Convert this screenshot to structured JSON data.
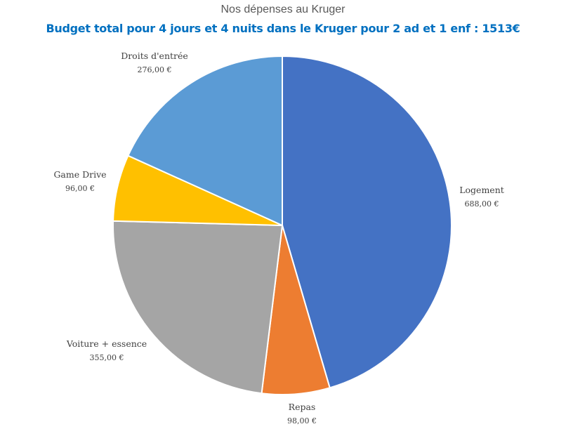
{
  "chart_data": {
    "type": "pie",
    "title": "Nos dépenses au Kruger",
    "subtitle": "Budget total pour 4 jours et 4 nuits dans le Kruger pour 2 ad et 1 enf : 1513€",
    "categories": [
      "Logement",
      "Repas",
      "Voiture + essence",
      "Game Drive",
      "Droits d'entrée"
    ],
    "values": [
      688,
      98,
      355,
      96,
      276
    ],
    "value_labels": [
      "688,00 €",
      "98,00 €",
      "355,00 €",
      "96,00 €",
      "276,00 €"
    ],
    "colors": [
      "#4472c4",
      "#ed7d31",
      "#a5a5a5",
      "#ffc000",
      "#5b9bd5"
    ],
    "start_angle_deg": 0,
    "direction": "clockwise",
    "legend": "none",
    "data_labels": "outside"
  }
}
